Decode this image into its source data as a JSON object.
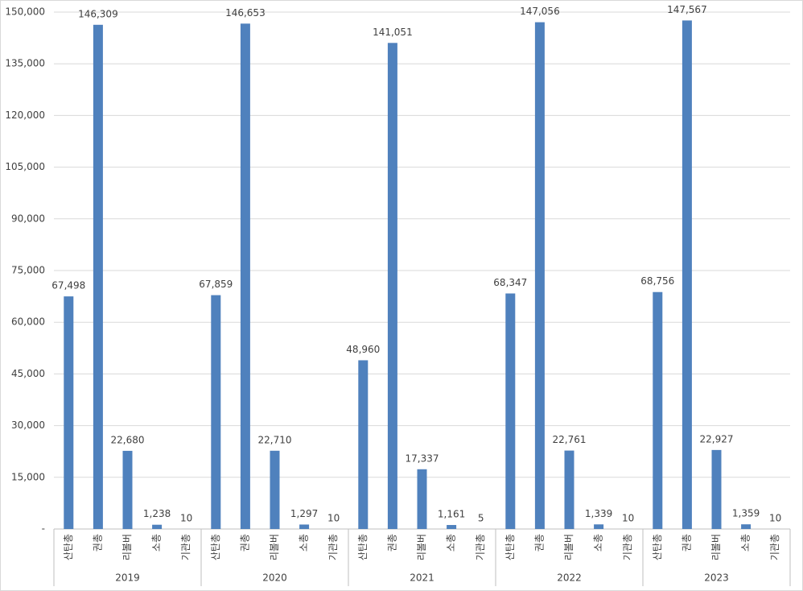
{
  "chart_data": {
    "type": "grouped-bar",
    "groups": [
      "2019",
      "2020",
      "2021",
      "2022",
      "2023"
    ],
    "categories": [
      "산탄총",
      "권총",
      "리볼버",
      "소총",
      "기관총"
    ],
    "values": [
      [
        67498,
        146309,
        22680,
        1238,
        10
      ],
      [
        67859,
        146653,
        22710,
        1297,
        10
      ],
      [
        48960,
        141051,
        17337,
        1161,
        5
      ],
      [
        68347,
        147056,
        22761,
        1339,
        10
      ],
      [
        68756,
        147567,
        22927,
        1359,
        10
      ]
    ],
    "value_labels": [
      [
        "67,498",
        "146,309",
        "22,680",
        "1,238",
        "10"
      ],
      [
        "67,859",
        "146,653",
        "22,710",
        "1,297",
        "10"
      ],
      [
        "48,960",
        "141,051",
        "17,337",
        "1,161",
        "5"
      ],
      [
        "68,347",
        "147,056",
        "22,761",
        "1,339",
        "10"
      ],
      [
        "68,756",
        "147,567",
        "22,927",
        "1,359",
        "10"
      ]
    ],
    "color": "#4f81bd",
    "ylim": [
      0,
      150000
    ],
    "yticks": [
      {
        "value": 0,
        "label": "-"
      },
      {
        "value": 15000,
        "label": "15,000"
      },
      {
        "value": 30000,
        "label": "30,000"
      },
      {
        "value": 45000,
        "label": "45,000"
      },
      {
        "value": 60000,
        "label": "60,000"
      },
      {
        "value": 75000,
        "label": "75,000"
      },
      {
        "value": 90000,
        "label": "90,000"
      },
      {
        "value": 105000,
        "label": "105,000"
      },
      {
        "value": 120000,
        "label": "120,000"
      },
      {
        "value": 135000,
        "label": "135,000"
      },
      {
        "value": 150000,
        "label": "150,000"
      }
    ],
    "grid": true
  }
}
